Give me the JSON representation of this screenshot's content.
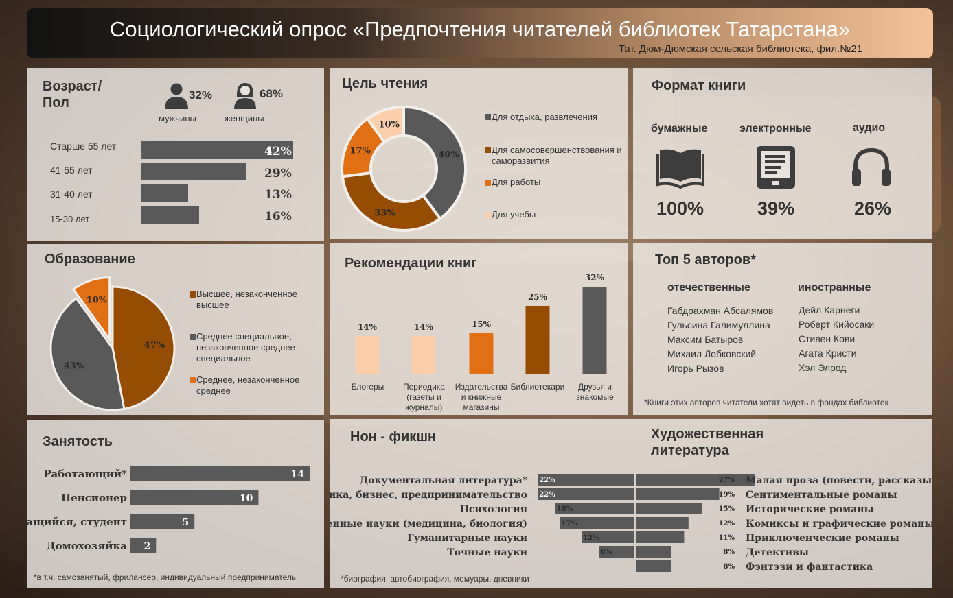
{
  "header": {
    "title": "Социологический опрос «Предпочтения читателей библиотек Татарстана»",
    "subtitle": "Тат. Дюм-Дюмская сельская библиотека, фил.№21"
  },
  "age": {
    "title_line1": "Возраст/",
    "title_line2": "Пол",
    "male_pct": "32%",
    "male_label": "мужчины",
    "female_pct": "68%",
    "female_label": "женщины",
    "rows": [
      {
        "label": "Старше 55 лет",
        "value": 42,
        "text": "42%"
      },
      {
        "label": "41-55 лет",
        "value": 29,
        "text": "29%"
      },
      {
        "label": "31-40 лет",
        "value": 13,
        "text": "13%"
      },
      {
        "label": "15-30 лет",
        "value": 16,
        "text": "16%"
      }
    ]
  },
  "purpose": {
    "title": "Цель чтения",
    "legend": [
      "Для отдыха, развлечения",
      "Для самосовершенствования и саморазвития",
      "Для работы",
      "Для учебы"
    ]
  },
  "format": {
    "title": "Формат книги",
    "items": [
      {
        "label": "бумажные",
        "value": "100%"
      },
      {
        "label": "электронные",
        "value": "39%"
      },
      {
        "label": "аудио",
        "value": "26%"
      }
    ]
  },
  "education": {
    "title": "Образование",
    "legend": [
      "Высшее, незаконченное высшее",
      "Среднее специальное, незаконченное среднее специальное",
      "Среднее, незаконченное среднее"
    ]
  },
  "recommend": {
    "title": "Рекомендации книг",
    "labels": [
      "Блогеры",
      "Периодика (газеты и журналы)",
      "Издательства и книжные магазины",
      "Библиотекари",
      "Друзья и знакомые"
    ]
  },
  "authors": {
    "title": "Топ 5 авторов*",
    "domestic_title": "отечественные",
    "foreign_title": "иностранные",
    "domestic": [
      "Габдрахман Абсалямов",
      "Гульсина Галимуллина",
      "Максим Батыров",
      "Михаил Лобковский",
      "Игорь Рызов"
    ],
    "foreign": [
      "Дейл Карнеги",
      "Роберт Кийосаки",
      "Стивен Кови",
      "Агата Кристи",
      "Хэл Элрод"
    ],
    "note": "*Книги этих авторов читатели хотят видеть в фондах библиотек"
  },
  "employment": {
    "title": "Занятость",
    "rows": [
      {
        "label": "Работающий*",
        "value": 14
      },
      {
        "label": "Пенсионер",
        "value": 10
      },
      {
        "label": "Учащийся, студент",
        "value": 5
      },
      {
        "label": "Домохозяйка",
        "value": 2
      }
    ],
    "note": "*в т.ч. самозанятый, фрилансер, индивидуальный предприниматель"
  },
  "literature": {
    "nonfiction_title": "Нон - фикшн",
    "fiction_title": "Художественная литература",
    "note": "*биография, автобиография, мемуары, дневники"
  },
  "colors": {
    "dark_gray": "#595959",
    "brown": "#974C04",
    "orange": "#E16F13",
    "peach": "#FBCFAC"
  },
  "chart_data": [
    {
      "type": "pie",
      "subtype": "donut",
      "title": "Цель чтения",
      "categories": [
        "Для отдыха, развлечения",
        "Для самосовершенствования и саморазвития",
        "Для работы",
        "Для учебы"
      ],
      "values": [
        40,
        33,
        17,
        10
      ],
      "labels": [
        "40%",
        "33%",
        "17%",
        "10%"
      ],
      "colors": [
        "#595959",
        "#974C04",
        "#E16F13",
        "#FBCFAC"
      ],
      "legend": "right"
    },
    {
      "type": "pie",
      "title": "Образование",
      "categories": [
        "Высшее, незаконченное высшее",
        "Среднее специальное, незаконченное среднее специальное",
        "Среднее, незаконченное среднее"
      ],
      "values": [
        47,
        43,
        10
      ],
      "labels": [
        "47%",
        "43%",
        "10%"
      ],
      "colors": [
        "#974C04",
        "#595959",
        "#E16F13"
      ],
      "legend": "right"
    },
    {
      "type": "bar",
      "title": "Рекомендации книг",
      "categories": [
        "Блогеры",
        "Периодика (газеты и журналы)",
        "Издательства и книжные магазины",
        "Библиотекари",
        "Друзья и знакомые"
      ],
      "values": [
        14,
        14,
        15,
        25,
        32
      ],
      "labels": [
        "14%",
        "14%",
        "15%",
        "25%",
        "32%"
      ],
      "colors": [
        "#FBCFAC",
        "#FBCFAC",
        "#E16F13",
        "#974C04",
        "#595959"
      ]
    },
    {
      "type": "bar",
      "orientation": "horizontal",
      "title": "Возраст/ Пол",
      "categories": [
        "Старше 55 лет",
        "41-55 лет",
        "31-40 лет",
        "15-30 лет"
      ],
      "values": [
        42,
        29,
        13,
        16
      ]
    },
    {
      "type": "bar",
      "orientation": "horizontal",
      "title": "Занятость",
      "categories": [
        "Работающий*",
        "Пенсионер",
        "Учащийся, студент",
        "Домохозяйка"
      ],
      "values": [
        14,
        10,
        5,
        2
      ]
    },
    {
      "type": "bar",
      "orientation": "horizontal",
      "title": "Нон - фикшн",
      "categories": [
        "Документальная литература*",
        "Экономика, бизнес, предпринимательство",
        "Психология",
        "Естественные науки (медицина, биология)",
        "Гуманитарные науки",
        "Точные науки"
      ],
      "values": [
        22,
        22,
        18,
        17,
        12,
        8
      ],
      "labels": [
        "22%",
        "22%",
        "18%",
        "17%",
        "12%",
        "8%"
      ]
    },
    {
      "type": "bar",
      "orientation": "horizontal",
      "title": "Художественная литература",
      "categories": [
        "Малая проза (повести, рассказы)",
        "Сентиментальные романы",
        "Исторические романы",
        "Комиксы и графические романы",
        "Приключенческие романы",
        "Детективы",
        "Фэнтэзи и фантастика"
      ],
      "values": [
        27,
        19,
        15,
        12,
        11,
        8,
        8
      ],
      "labels": [
        "27%",
        "19%",
        "15%",
        "12%",
        "11%",
        "8%",
        "8%"
      ]
    }
  ]
}
